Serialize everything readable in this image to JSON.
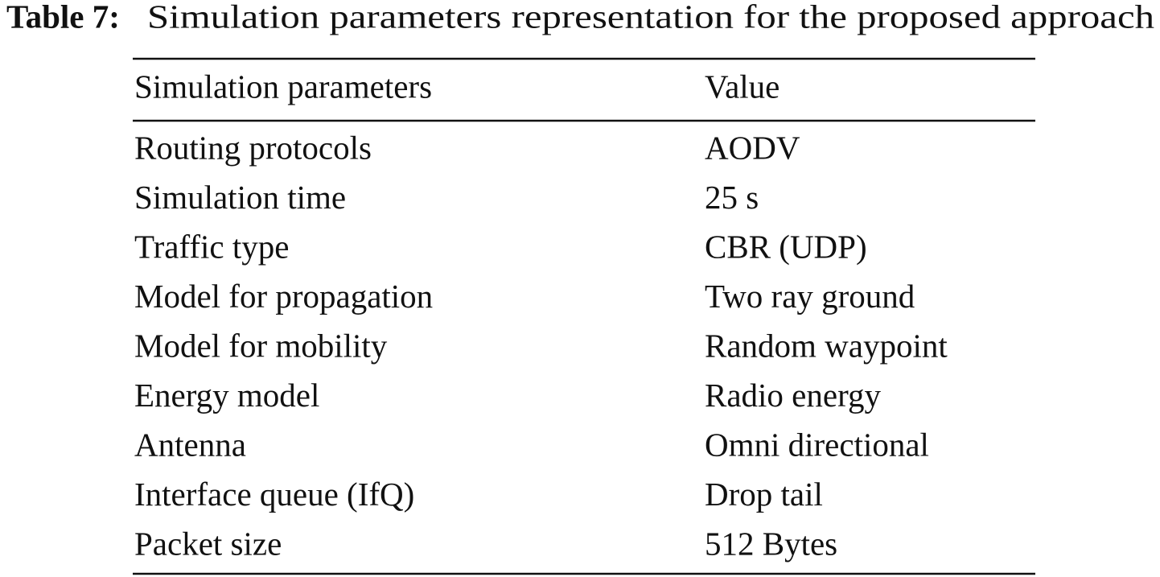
{
  "caption": {
    "label": "Table 7:",
    "text": "Simulation parameters representation for the proposed approach"
  },
  "table": {
    "header": [
      "Simulation parameters",
      "Value"
    ],
    "rows": [
      [
        "Routing protocols",
        "AODV"
      ],
      [
        "Simulation time",
        "25 s"
      ],
      [
        "Traffic type",
        "CBR (UDP)"
      ],
      [
        "Model for propagation",
        "Two ray ground"
      ],
      [
        "Model for mobility",
        "Random waypoint"
      ],
      [
        "Energy model",
        "Radio energy"
      ],
      [
        "Antenna",
        "Omni directional"
      ],
      [
        "Interface queue (IfQ)",
        "Drop tail"
      ],
      [
        "Packet size",
        "512 Bytes"
      ]
    ]
  }
}
